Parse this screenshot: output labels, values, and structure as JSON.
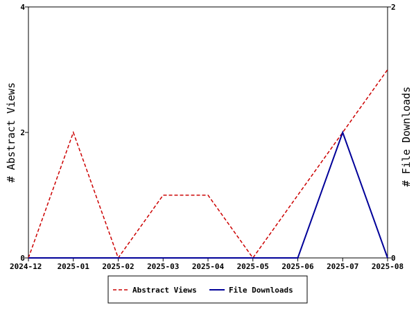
{
  "chart_data": {
    "type": "line",
    "categories": [
      "2024-12",
      "2025-01",
      "2025-02",
      "2025-03",
      "2025-04",
      "2025-05",
      "2025-06",
      "2025-07",
      "2025-08"
    ],
    "y_left": {
      "label": "# Abstract Views",
      "range": [
        0,
        4
      ],
      "ticks": [
        "0",
        "2",
        "4"
      ]
    },
    "y_right": {
      "label": "# File Downloads",
      "range": [
        0,
        2
      ],
      "ticks": [
        "0",
        "2"
      ]
    },
    "series": [
      {
        "name": "Abstract Views",
        "axis": "left",
        "color": "#cc0000",
        "dash": true,
        "values": [
          0,
          2,
          0,
          1,
          1,
          0,
          1,
          2,
          3
        ]
      },
      {
        "name": "File Downloads",
        "axis": "right",
        "color": "#000099",
        "dash": false,
        "values": [
          0,
          0,
          0,
          0,
          0,
          0,
          0,
          1,
          0
        ]
      }
    ],
    "legend_position": "bottom",
    "grid": false
  }
}
